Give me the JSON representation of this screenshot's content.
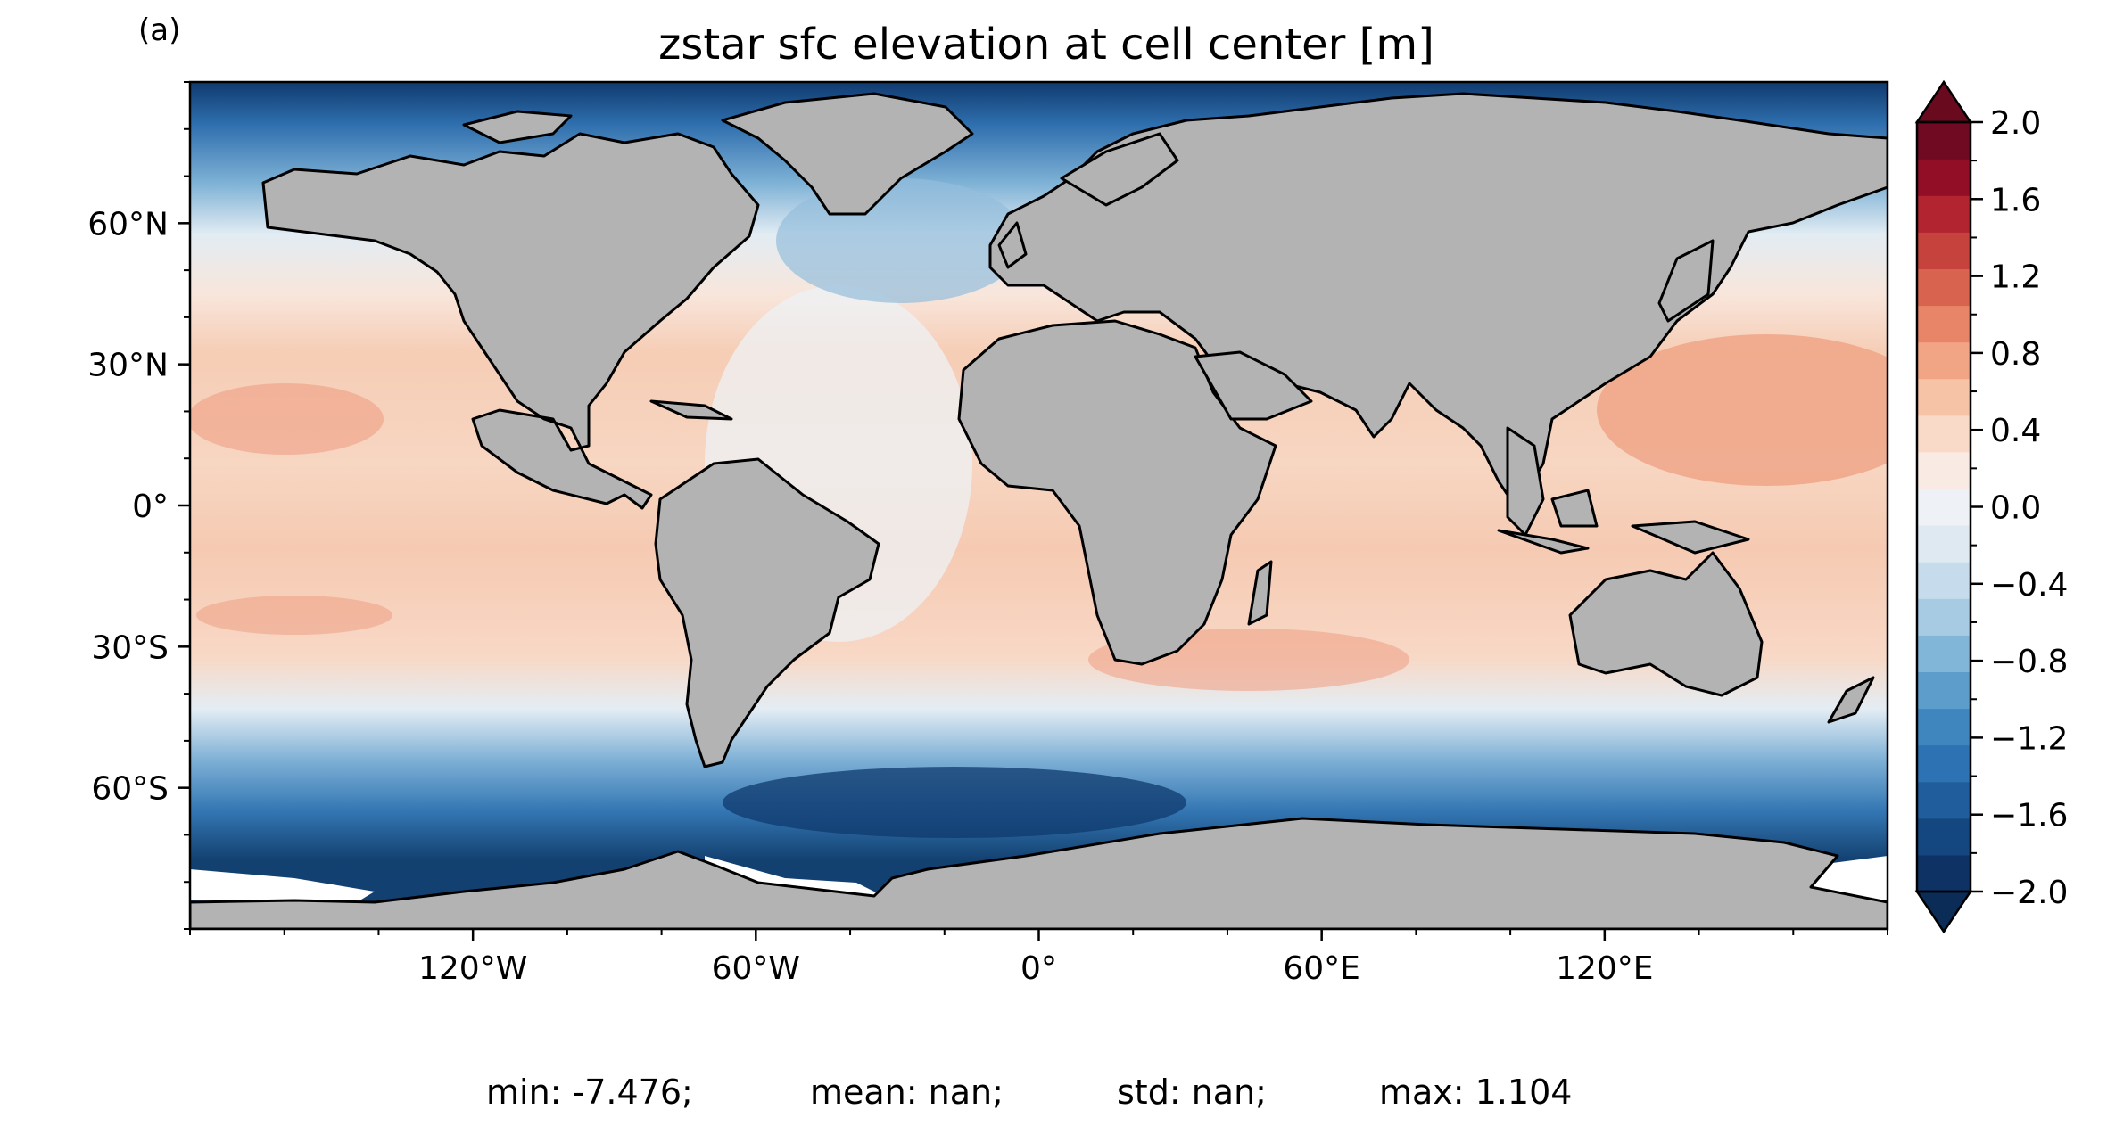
{
  "panel_label": "(a)",
  "title": "zstar sfc elevation at cell center [m]",
  "stats": {
    "min": "min: -7.476;",
    "mean": "mean: nan;",
    "std": "std: nan;",
    "max": "max: 1.104"
  },
  "map": {
    "projection": "equirectangular",
    "lon_range": [
      -180,
      180
    ],
    "lat_range": [
      -90,
      90
    ],
    "land_color": "#b3b3b3",
    "coastline_color": "#000000",
    "lon_ticks": [
      {
        "value": -120,
        "label": "120°W"
      },
      {
        "value": -60,
        "label": "60°W"
      },
      {
        "value": 0,
        "label": "0°"
      },
      {
        "value": 60,
        "label": "60°E"
      },
      {
        "value": 120,
        "label": "120°E"
      }
    ],
    "lat_ticks": [
      {
        "value": 60,
        "label": "60°N"
      },
      {
        "value": 30,
        "label": "30°N"
      },
      {
        "value": 0,
        "label": "0°"
      },
      {
        "value": -30,
        "label": "30°S"
      },
      {
        "value": -60,
        "label": "60°S"
      }
    ]
  },
  "colorbar": {
    "colormap": "RdBu_r",
    "range": [
      -2.0,
      2.0
    ],
    "extend": "both",
    "ticks": [
      "2.0",
      "1.6",
      "1.2",
      "0.8",
      "0.4",
      "0.0",
      "−0.4",
      "−0.8",
      "−1.2",
      "−1.6",
      "−2.0"
    ],
    "colors": [
      "#0d3263",
      "#14467f",
      "#1f5d9c",
      "#2d72b2",
      "#3f86bf",
      "#5d9dcb",
      "#82b6d8",
      "#a6cbe3",
      "#c6dcec",
      "#dfe9f2",
      "#eef2f6",
      "#f9ebe3",
      "#f9dac9",
      "#f7c3a7",
      "#f2a585",
      "#e88468",
      "#d8634f",
      "#c5433c",
      "#b22530",
      "#920d26",
      "#6f0a22"
    ],
    "over_color": "#6a0a1e",
    "under_color": "#0b2c57"
  }
}
